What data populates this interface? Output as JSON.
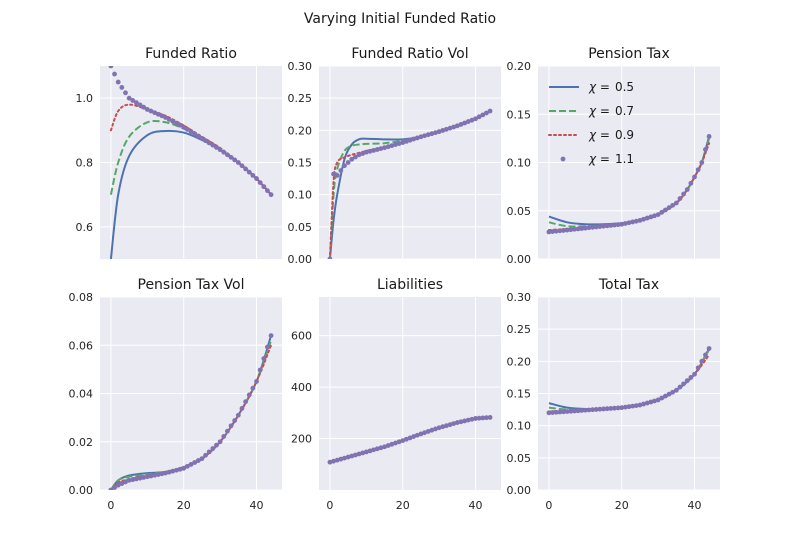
{
  "figure": {
    "suptitle": "Varying Initial Funded Ratio"
  },
  "colors": {
    "chi_0.5": "#4c72b0",
    "chi_0.7": "#55a868",
    "chi_0.9": "#c44e52",
    "chi_1.1": "#8172b2",
    "axes_bg": "#eaeaf2",
    "grid": "#ffffff"
  },
  "chart_data": [
    {
      "type": "line",
      "title": "Funded Ratio",
      "xlim": [
        -3,
        47
      ],
      "ylim": [
        0.5,
        1.1
      ],
      "yticks": [
        0.6,
        0.8,
        1.0
      ],
      "ytick_labels": [
        "0.6",
        "0.8",
        "1.0"
      ],
      "xticks": [
        0,
        20,
        40
      ],
      "xtick_labels": [],
      "x": [
        0,
        2,
        5,
        10,
        15,
        20,
        25,
        30,
        35,
        40,
        44
      ],
      "series": [
        {
          "name": "χ = 0.5",
          "style": "solid",
          "values": [
            0.5,
            0.7,
            0.82,
            0.885,
            0.898,
            0.893,
            0.87,
            0.84,
            0.8,
            0.75,
            0.7
          ]
        },
        {
          "name": "χ = 0.7",
          "style": "dashed",
          "values": [
            0.7,
            0.8,
            0.88,
            0.925,
            0.925,
            0.905,
            0.875,
            0.84,
            0.8,
            0.75,
            0.7
          ]
        },
        {
          "name": "χ = 0.9",
          "style": "dotted",
          "values": [
            0.9,
            0.96,
            0.98,
            0.965,
            0.945,
            0.915,
            0.88,
            0.845,
            0.8,
            0.75,
            0.7
          ]
        },
        {
          "name": "χ = 1.1",
          "style": "markers",
          "values": [
            1.1,
            1.05,
            1.0,
            0.965,
            0.94,
            0.91,
            0.875,
            0.84,
            0.8,
            0.75,
            0.7
          ]
        }
      ]
    },
    {
      "type": "line",
      "title": "Funded Ratio Vol",
      "xlim": [
        -3,
        47
      ],
      "ylim": [
        0,
        0.3
      ],
      "yticks": [
        0,
        0.05,
        0.1,
        0.15,
        0.2,
        0.25,
        0.3
      ],
      "ytick_labels": [
        "0.00",
        "0.05",
        "0.10",
        "0.15",
        "0.20",
        "0.25",
        "0.30"
      ],
      "xticks": [
        0,
        20,
        40
      ],
      "xtick_labels": [],
      "x": [
        0,
        1,
        2,
        4,
        6,
        8,
        10,
        15,
        20,
        25,
        30,
        35,
        40,
        44
      ],
      "series": [
        {
          "name": "χ = 0.5",
          "style": "solid",
          "values": [
            0,
            0.06,
            0.1,
            0.155,
            0.178,
            0.186,
            0.187,
            0.186,
            0.186,
            0.19,
            0.198,
            0.207,
            0.218,
            0.23
          ]
        },
        {
          "name": "χ = 0.7",
          "style": "dashed",
          "values": [
            0,
            0.1,
            0.14,
            0.168,
            0.176,
            0.178,
            0.179,
            0.18,
            0.184,
            0.19,
            0.198,
            0.207,
            0.218,
            0.23
          ]
        },
        {
          "name": "χ = 0.9",
          "style": "dotted",
          "values": [
            0,
            0.12,
            0.15,
            0.158,
            0.162,
            0.165,
            0.168,
            0.174,
            0.181,
            0.19,
            0.198,
            0.207,
            0.218,
            0.23
          ]
        },
        {
          "name": "χ = 1.1",
          "style": "markers",
          "values": [
            0,
            0.132,
            0.13,
            0.145,
            0.155,
            0.162,
            0.166,
            0.173,
            0.181,
            0.19,
            0.198,
            0.207,
            0.218,
            0.23
          ]
        }
      ]
    },
    {
      "type": "line",
      "title": "Pension Tax",
      "xlim": [
        -3,
        47
      ],
      "ylim": [
        0,
        0.2
      ],
      "yticks": [
        0,
        0.05,
        0.1,
        0.15,
        0.2
      ],
      "ytick_labels": [
        "0.00",
        "0.05",
        "0.10",
        "0.15",
        "0.20"
      ],
      "xticks": [
        0,
        20,
        40
      ],
      "xtick_labels": [],
      "x": [
        0,
        5,
        10,
        15,
        20,
        25,
        30,
        35,
        38,
        40,
        42,
        44
      ],
      "series": [
        {
          "name": "χ = 0.5",
          "style": "solid",
          "values": [
            0.044,
            0.038,
            0.036,
            0.036,
            0.037,
            0.04,
            0.046,
            0.058,
            0.072,
            0.085,
            0.1,
            0.127
          ]
        },
        {
          "name": "χ = 0.7",
          "style": "dashed",
          "values": [
            0.038,
            0.034,
            0.034,
            0.035,
            0.037,
            0.04,
            0.046,
            0.058,
            0.072,
            0.085,
            0.1,
            0.125
          ]
        },
        {
          "name": "χ = 0.9",
          "style": "dotted",
          "values": [
            0.03,
            0.031,
            0.032,
            0.034,
            0.036,
            0.04,
            0.046,
            0.058,
            0.072,
            0.085,
            0.1,
            0.12
          ]
        },
        {
          "name": "χ = 1.1",
          "style": "markers",
          "values": [
            0.028,
            0.03,
            0.032,
            0.034,
            0.036,
            0.04,
            0.046,
            0.058,
            0.072,
            0.085,
            0.1,
            0.127
          ]
        }
      ],
      "legend": {
        "placement": "upper-left",
        "entries": [
          {
            "prefix": "χ =",
            "value": "0.5"
          },
          {
            "prefix": "χ =",
            "value": "0.7"
          },
          {
            "prefix": "χ =",
            "value": "0.9"
          },
          {
            "prefix": "χ =",
            "value": "1.1"
          }
        ]
      }
    },
    {
      "type": "line",
      "title": "Pension Tax Vol",
      "xlim": [
        -3,
        47
      ],
      "ylim": [
        0,
        0.08
      ],
      "yticks": [
        0,
        0.02,
        0.04,
        0.06,
        0.08
      ],
      "ytick_labels": [
        "0.00",
        "0.02",
        "0.04",
        "0.06",
        "0.08"
      ],
      "xticks": [
        0,
        20,
        40
      ],
      "xtick_labels": [
        "0",
        "20",
        "40"
      ],
      "x": [
        0,
        2,
        5,
        10,
        15,
        20,
        25,
        30,
        35,
        40,
        44
      ],
      "series": [
        {
          "name": "χ = 0.5",
          "style": "solid",
          "values": [
            0,
            0.004,
            0.006,
            0.007,
            0.0075,
            0.0095,
            0.013,
            0.02,
            0.031,
            0.045,
            0.064
          ]
        },
        {
          "name": "χ = 0.7",
          "style": "dashed",
          "values": [
            0,
            0.004,
            0.0055,
            0.0065,
            0.0075,
            0.0092,
            0.013,
            0.02,
            0.031,
            0.045,
            0.062
          ]
        },
        {
          "name": "χ = 0.9",
          "style": "dotted",
          "values": [
            0,
            0.003,
            0.0045,
            0.006,
            0.007,
            0.009,
            0.013,
            0.02,
            0.031,
            0.045,
            0.06
          ]
        },
        {
          "name": "χ = 1.1",
          "style": "markers",
          "values": [
            0,
            0.002,
            0.004,
            0.0055,
            0.007,
            0.009,
            0.013,
            0.02,
            0.031,
            0.045,
            0.064
          ]
        }
      ]
    },
    {
      "type": "line",
      "title": "Liabilities",
      "xlim": [
        -3,
        47
      ],
      "ylim": [
        0,
        750
      ],
      "yticks": [
        200,
        400,
        600
      ],
      "ytick_labels": [
        "200",
        "400",
        "600"
      ],
      "xticks": [
        0,
        20,
        40
      ],
      "xtick_labels": [
        "0",
        "20",
        "40"
      ],
      "x": [
        0,
        5,
        10,
        15,
        20,
        25,
        30,
        35,
        40,
        44
      ],
      "series": [
        {
          "name": "χ = 0.5",
          "style": "solid",
          "values": [
            108,
            128,
            148,
            168,
            192,
            218,
            242,
            262,
            278,
            282
          ]
        },
        {
          "name": "χ = 0.7",
          "style": "dashed",
          "values": [
            108,
            128,
            148,
            168,
            192,
            218,
            242,
            262,
            278,
            282
          ]
        },
        {
          "name": "χ = 0.9",
          "style": "dotted",
          "values": [
            108,
            128,
            148,
            168,
            192,
            218,
            242,
            262,
            278,
            282
          ]
        },
        {
          "name": "χ = 1.1",
          "style": "markers",
          "values": [
            108,
            128,
            148,
            168,
            192,
            218,
            242,
            262,
            278,
            282
          ]
        }
      ]
    },
    {
      "type": "line",
      "title": "Total Tax",
      "xlim": [
        -3,
        47
      ],
      "ylim": [
        0,
        0.3
      ],
      "yticks": [
        0,
        0.05,
        0.1,
        0.15,
        0.2,
        0.25,
        0.3
      ],
      "ytick_labels": [
        "0.00",
        "0.05",
        "0.10",
        "0.15",
        "0.20",
        "0.25",
        "0.30"
      ],
      "xticks": [
        0,
        20,
        40
      ],
      "xtick_labels": [
        "0",
        "20",
        "40"
      ],
      "x": [
        0,
        5,
        10,
        15,
        20,
        25,
        30,
        35,
        40,
        44
      ],
      "series": [
        {
          "name": "χ = 0.5",
          "style": "solid",
          "values": [
            0.135,
            0.128,
            0.126,
            0.126,
            0.128,
            0.132,
            0.14,
            0.155,
            0.18,
            0.22
          ]
        },
        {
          "name": "χ = 0.7",
          "style": "dashed",
          "values": [
            0.128,
            0.125,
            0.125,
            0.126,
            0.128,
            0.132,
            0.14,
            0.155,
            0.18,
            0.218
          ]
        },
        {
          "name": "χ = 0.9",
          "style": "dotted",
          "values": [
            0.122,
            0.123,
            0.124,
            0.126,
            0.128,
            0.132,
            0.14,
            0.155,
            0.18,
            0.21
          ]
        },
        {
          "name": "χ = 1.1",
          "style": "markers",
          "values": [
            0.12,
            0.122,
            0.124,
            0.126,
            0.128,
            0.132,
            0.14,
            0.155,
            0.18,
            0.22
          ]
        }
      ]
    }
  ]
}
